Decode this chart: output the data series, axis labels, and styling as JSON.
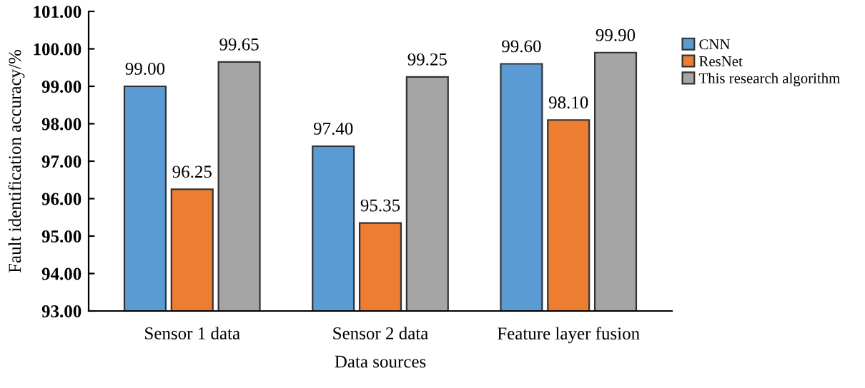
{
  "chart_data": {
    "type": "bar",
    "xlabel": "Data sources",
    "ylabel": "Fault identification accuracy/%",
    "categories": [
      "Sensor 1 data",
      "Sensor 2 data",
      "Feature layer fusion"
    ],
    "series": [
      {
        "name": "CNN",
        "color": "#5b9bd5",
        "values": [
          99.0,
          97.4,
          99.6
        ]
      },
      {
        "name": "ResNet",
        "color": "#ed7d31",
        "values": [
          96.25,
          95.35,
          98.1
        ]
      },
      {
        "name": "This research algorithm",
        "color": "#a5a5a5",
        "values": [
          99.65,
          99.25,
          99.9
        ]
      }
    ],
    "ylim": [
      93,
      101
    ],
    "yticks": [
      {
        "value": 93,
        "label": "93.00"
      },
      {
        "value": 94,
        "label": "94.00"
      },
      {
        "value": 95,
        "label": "95.00"
      },
      {
        "value": 96,
        "label": "96.00"
      },
      {
        "value": 97,
        "label": "97.00"
      },
      {
        "value": 98,
        "label": "98.00"
      },
      {
        "value": 99,
        "label": "99.00"
      },
      {
        "value": 100,
        "label": "100.00"
      },
      {
        "value": 101,
        "label": "101.00"
      }
    ],
    "value_labels": [
      [
        "99.00",
        "97.40",
        "99.60"
      ],
      [
        "96.25",
        "95.35",
        "98.10"
      ],
      [
        "99.65",
        "99.25",
        "99.90"
      ]
    ],
    "grid": false,
    "legend": "right"
  }
}
